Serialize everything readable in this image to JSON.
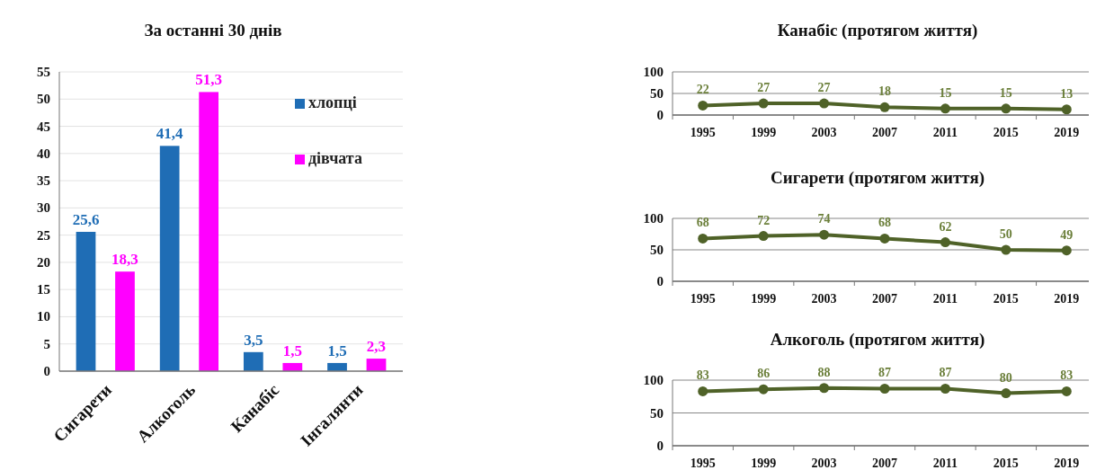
{
  "chart_data": [
    {
      "type": "bar",
      "title": "За останні 30 днів",
      "categories": [
        "Сигарети",
        "Алкоголь",
        "Канабіс",
        "Інгалянти"
      ],
      "series": [
        {
          "name": "хлопці",
          "color": "#1f6db5",
          "values": [
            25.6,
            41.4,
            3.5,
            1.5
          ],
          "value_labels": [
            "25,6",
            "41,4",
            "3,5",
            "1,5"
          ]
        },
        {
          "name": "дівчата",
          "color": "#ff00ff",
          "values": [
            18.3,
            51.3,
            1.5,
            2.3
          ],
          "value_labels": [
            "18,3",
            "51,3",
            "1,5",
            "2,3"
          ]
        }
      ],
      "ylim": [
        0,
        55
      ],
      "yticks": [
        0,
        5,
        10,
        15,
        20,
        25,
        30,
        35,
        40,
        45,
        50,
        55
      ],
      "grid": "y",
      "legend": "top right"
    },
    {
      "type": "line",
      "title": "Канабіс (протягом життя)",
      "categories": [
        "1995",
        "1999",
        "2003",
        "2007",
        "2011",
        "2015",
        "2019"
      ],
      "series": [
        {
          "color": "#4f6228",
          "values": [
            22,
            27,
            27,
            18,
            15,
            15,
            13
          ]
        }
      ],
      "ylim": [
        0,
        100
      ],
      "yticks": [
        0,
        50,
        100
      ],
      "grid": "y",
      "marker": "circle",
      "data_labels": true
    },
    {
      "type": "line",
      "title": "Сигарети (протягом життя)",
      "categories": [
        "1995",
        "1999",
        "2003",
        "2007",
        "2011",
        "2015",
        "2019"
      ],
      "series": [
        {
          "color": "#4f6228",
          "values": [
            68,
            72,
            74,
            68,
            62,
            50,
            49
          ]
        }
      ],
      "ylim": [
        0,
        100
      ],
      "yticks": [
        0,
        50,
        100
      ],
      "grid": "y",
      "marker": "circle",
      "data_labels": true
    },
    {
      "type": "line",
      "title": "Алкоголь (протягом життя)",
      "categories": [
        "1995",
        "1999",
        "2003",
        "2007",
        "2011",
        "2015",
        "2019"
      ],
      "series": [
        {
          "color": "#4f6228",
          "values": [
            83,
            86,
            88,
            87,
            87,
            80,
            83
          ]
        }
      ],
      "ylim": [
        0,
        100
      ],
      "yticks": [
        0,
        50,
        100
      ],
      "grid": "y",
      "marker": "circle",
      "data_labels": true
    }
  ]
}
